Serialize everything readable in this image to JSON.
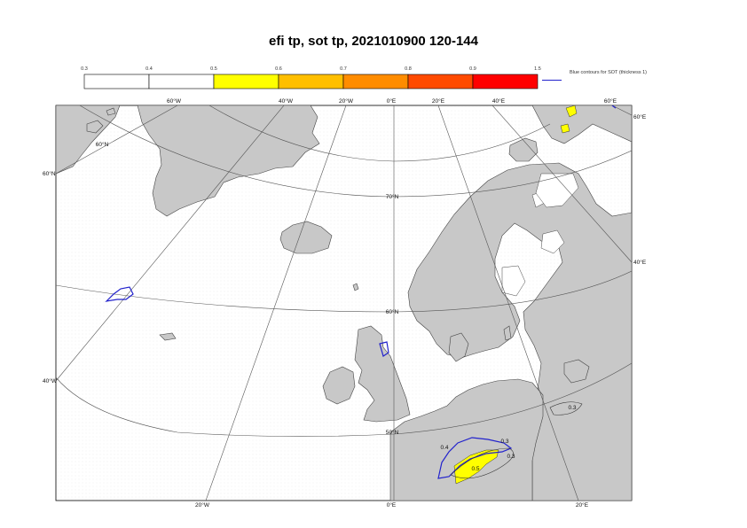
{
  "title": "efi tp, sot tp, 2021010900 120-144",
  "colorbar": {
    "ticks": [
      "0.3",
      "0.4",
      "0.5",
      "0.6",
      "0.7",
      "0.8",
      "0.9",
      "1.5"
    ],
    "colors": [
      "#ffffff",
      "#ffffff",
      "#ffff00",
      "#ffbf00",
      "#ff8c00",
      "#ff4a00",
      "#ff0000"
    ]
  },
  "legend": {
    "sot_note": "Blue contours for SOT (thickness 1)",
    "sot_color": "#2222cc"
  },
  "map": {
    "land_color": "#c8c8c8",
    "sea_color": "#ffffff",
    "grid_top": [
      "60°W",
      "40°W",
      "20°W",
      "0°E",
      "20°E",
      "40°E",
      "60°E"
    ],
    "grid_bottom": [
      "20°W",
      "0°E",
      "20°E"
    ],
    "grid_left": [
      "60°N",
      "40°W"
    ],
    "grid_right": [
      "60°E",
      "40°E"
    ],
    "lat_labels": [
      "70°N",
      "60°N",
      "50°N",
      "60°N"
    ],
    "contour_labels": [
      "0.3",
      "0.3",
      "0.4",
      "0.5",
      "0.3"
    ]
  }
}
